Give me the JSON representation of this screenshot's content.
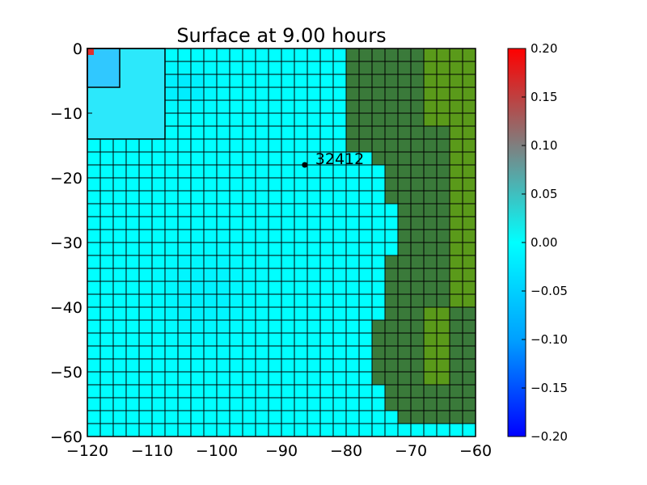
{
  "chart_data": {
    "type": "heatmap",
    "title": "Surface at 9.00 hours",
    "xlabel": "",
    "ylabel": "",
    "xlim": [
      -120,
      -60
    ],
    "ylim": [
      -60,
      0
    ],
    "x_ticks": [
      -120,
      -110,
      -100,
      -90,
      -80,
      -70,
      -60
    ],
    "y_ticks": [
      0,
      -10,
      -20,
      -30,
      -40,
      -50,
      -60
    ],
    "x_tick_labels": [
      "−120",
      "−110",
      "−100",
      "−90",
      "−80",
      "−70",
      "−60"
    ],
    "y_tick_labels": [
      "0",
      "−10",
      "−20",
      "−30",
      "−40",
      "−50",
      "−60"
    ],
    "grid_cell_size": 2,
    "colorbar": {
      "min": -0.2,
      "max": 0.2,
      "ticks": [
        0.2,
        0.15,
        0.1,
        0.05,
        0.0,
        -0.05,
        -0.1,
        -0.15,
        -0.2
      ],
      "tick_labels": [
        "0.20",
        "0.15",
        "0.10",
        "0.05",
        "0.00",
        "−0.05",
        "−0.10",
        "−0.15",
        "−0.20"
      ],
      "colors": [
        "#0000ff",
        "#00a0ff",
        "#00ffff",
        "#7f7f7f",
        "#ff0000"
      ]
    },
    "land_colors": [
      "#3a7a3a",
      "#5a9a1a"
    ],
    "water_color": "#00ffff",
    "land_boundary_right_of_x": [
      [
        -80,
        -16
      ],
      [
        -76,
        -16
      ],
      [
        -74,
        -18
      ],
      [
        -72,
        -28
      ],
      [
        -74,
        -36
      ],
      [
        -76,
        -48
      ],
      [
        -74,
        -54
      ],
      [
        -70,
        -58
      ],
      [
        -68,
        -56
      ],
      [
        -66,
        -48
      ],
      [
        -64,
        -42
      ],
      [
        -62,
        -38
      ],
      [
        -60,
        -38
      ]
    ],
    "refined_patches": [
      {
        "x": [
          -120,
          -108
        ],
        "y": [
          -14,
          0
        ]
      },
      {
        "x": [
          -120,
          -115
        ],
        "y": [
          -6,
          0
        ]
      }
    ],
    "gauge": {
      "label": "32412",
      "x": -86.4,
      "y": -18.0
    }
  }
}
